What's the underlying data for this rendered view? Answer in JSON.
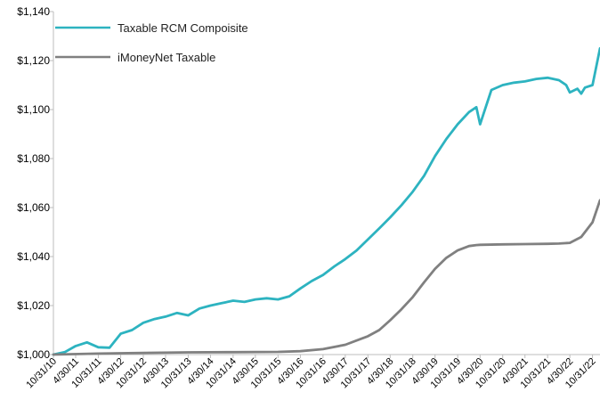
{
  "chart_data": {
    "type": "line",
    "title": "",
    "xlabel": "",
    "ylabel": "",
    "ylim": [
      1000,
      1140
    ],
    "yticks": [
      1000,
      1020,
      1040,
      1060,
      1080,
      1100,
      1120,
      1140
    ],
    "ytick_labels": [
      "$1,000",
      "$1,020",
      "$1,040",
      "$1,060",
      "$1,080",
      "$1,100",
      "$1,120",
      "$1,140"
    ],
    "xtick_labels": [
      "10/31/10",
      "4/30/11",
      "10/31/11",
      "4/30/12",
      "10/31/12",
      "4/30/13",
      "10/31/13",
      "4/30/14",
      "10/31/14",
      "4/30/15",
      "10/31/15",
      "4/30/16",
      "10/31/16",
      "4/30/17",
      "10/31/17",
      "4/30/18",
      "10/31/18",
      "4/30/19",
      "10/31/19",
      "4/30/20",
      "10/31/20",
      "4/30/21",
      "10/31/21",
      "4/30/22",
      "10/31/22"
    ],
    "grid": false,
    "legend": "top-left",
    "series": [
      {
        "name": "Taxable RCM Compoisite",
        "color": "#2db3c0",
        "x": [
          "10/31/10",
          "1/31/11",
          "4/30/11",
          "7/31/11",
          "10/31/11",
          "1/31/12",
          "4/30/12",
          "7/31/12",
          "10/31/12",
          "1/31/13",
          "4/30/13",
          "7/31/13",
          "10/31/13",
          "1/31/14",
          "4/30/14",
          "7/31/14",
          "10/31/14",
          "1/31/15",
          "4/30/15",
          "7/31/15",
          "10/31/15",
          "1/31/16",
          "4/30/16",
          "7/31/16",
          "10/31/16",
          "1/31/17",
          "4/30/17",
          "7/31/17",
          "10/31/17",
          "1/31/18",
          "4/30/18",
          "7/31/18",
          "10/31/18",
          "1/31/19",
          "4/30/19",
          "7/31/19",
          "10/31/19",
          "1/31/20",
          "3/31/20",
          "4/30/20",
          "7/31/20",
          "10/31/20",
          "1/31/21",
          "4/30/21",
          "7/31/21",
          "10/31/21",
          "1/31/22",
          "3/31/22",
          "4/30/22",
          "6/30/22",
          "7/31/22",
          "8/31/22",
          "10/31/22",
          "12/31/22"
        ],
        "values": [
          1000,
          1001,
          1003.5,
          1005,
          1003,
          1002.8,
          1008.5,
          1010,
          1013,
          1014.5,
          1015.5,
          1017,
          1016,
          1018.8,
          1020,
          1021,
          1022,
          1021.5,
          1022.5,
          1023,
          1022.5,
          1023.8,
          1027,
          1030,
          1032.5,
          1036,
          1039,
          1042.5,
          1047,
          1051.5,
          1056,
          1061,
          1066.5,
          1073,
          1081,
          1088,
          1094,
          1099,
          1101,
          1094,
          1108,
          1110,
          1111,
          1111.5,
          1112.5,
          1113,
          1112,
          1110,
          1107,
          1108.5,
          1106.5,
          1109,
          1110,
          1125
        ]
      },
      {
        "name": "iMoneyNet Taxable",
        "color": "#808080",
        "x": [
          "10/31/10",
          "10/31/11",
          "10/31/12",
          "10/31/13",
          "10/31/14",
          "10/31/15",
          "4/30/16",
          "10/31/16",
          "4/30/17",
          "10/31/17",
          "1/31/18",
          "4/30/18",
          "7/31/18",
          "10/31/18",
          "1/31/19",
          "4/30/19",
          "7/31/19",
          "10/31/19",
          "1/31/20",
          "3/31/20",
          "4/30/20",
          "10/31/20",
          "4/30/21",
          "10/31/21",
          "1/31/22",
          "4/30/22",
          "7/31/22",
          "10/31/22",
          "12/31/22"
        ],
        "values": [
          1000,
          1000.4,
          1000.7,
          1000.9,
          1001,
          1001.1,
          1001.4,
          1002.2,
          1004,
          1007.5,
          1010,
          1014,
          1018.5,
          1023.5,
          1029.5,
          1035,
          1039.5,
          1042.5,
          1044.3,
          1044.7,
          1044.8,
          1045,
          1045.1,
          1045.2,
          1045.3,
          1045.6,
          1048,
          1054,
          1063
        ]
      }
    ]
  }
}
